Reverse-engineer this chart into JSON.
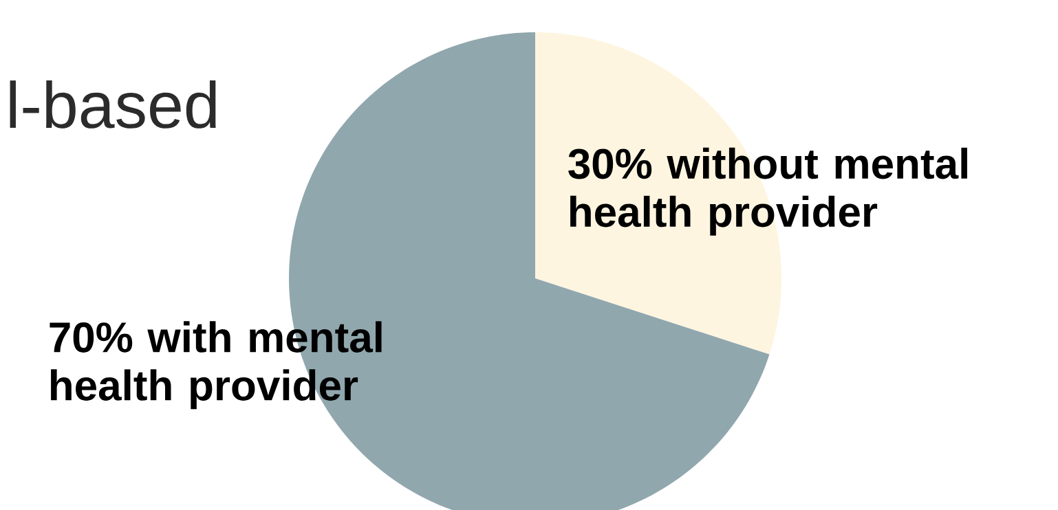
{
  "chart_data": {
    "type": "pie",
    "title": "l-based",
    "categories": [
      "30% without mental health provider",
      "70% with mental health provider"
    ],
    "values": [
      30,
      70
    ],
    "colors": [
      "#fef5e0",
      "#91a7ae"
    ]
  }
}
